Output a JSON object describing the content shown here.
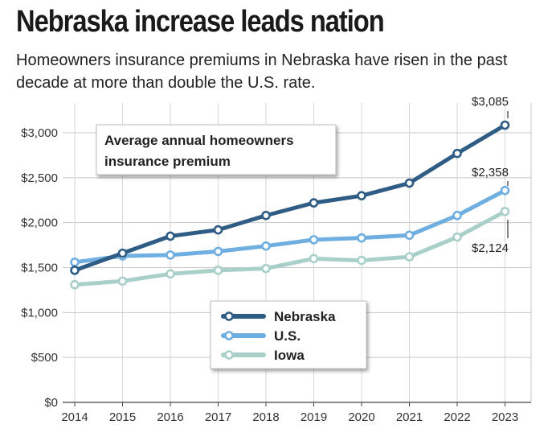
{
  "header": {
    "title": "Nebraska increase leads nation",
    "subtitle": "Homeowners insurance premiums in Nebraska have risen in the past decade at more than double the U.S. rate."
  },
  "chart_data": {
    "type": "line",
    "title": "Average annual homeowners insurance premium",
    "x": [
      "2014",
      "2015",
      "2016",
      "2017",
      "2018",
      "2019",
      "2020",
      "2021",
      "2022",
      "2023"
    ],
    "y_ticks": [
      0,
      500,
      1000,
      1500,
      2000,
      2500,
      3000
    ],
    "y_tick_labels": [
      "$0",
      "$500",
      "$1,000",
      "$1,500",
      "$2,000",
      "$2,500",
      "$3,000"
    ],
    "ylim": [
      0,
      3250
    ],
    "grid": true,
    "legend_placement": "bottom-center",
    "series": [
      {
        "name": "Nebraska",
        "color": "#2e5c84",
        "values": [
          1470,
          1660,
          1850,
          1920,
          2080,
          2220,
          2300,
          2440,
          2770,
          3085
        ]
      },
      {
        "name": "U.S.",
        "color": "#6faee0",
        "values": [
          1560,
          1630,
          1640,
          1680,
          1740,
          1810,
          1830,
          1860,
          2080,
          2358
        ]
      },
      {
        "name": "Iowa",
        "color": "#a9d0c8",
        "values": [
          1310,
          1350,
          1430,
          1470,
          1490,
          1600,
          1580,
          1620,
          1840,
          2124
        ]
      }
    ],
    "annotations": [
      {
        "series": 0,
        "index": 9,
        "label": "$3,085"
      },
      {
        "series": 1,
        "index": 9,
        "label": "$2,358"
      },
      {
        "series": 2,
        "index": 9,
        "label": "$2,124"
      }
    ],
    "box_label_lines": [
      "Average annual homeowners",
      "insurance premium"
    ]
  }
}
